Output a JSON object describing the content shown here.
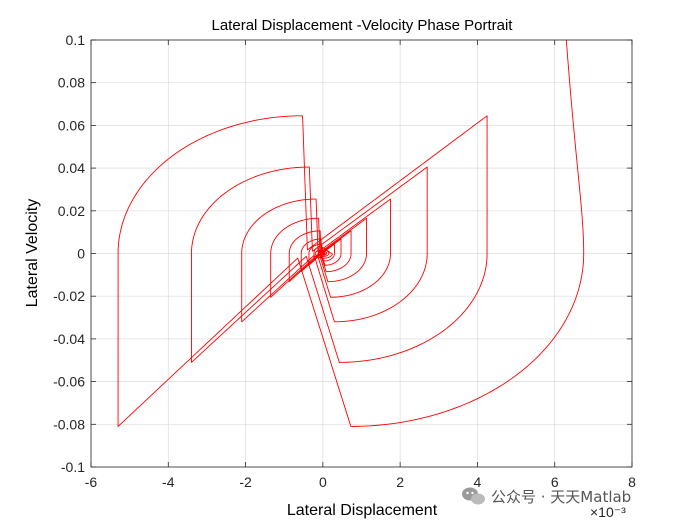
{
  "chart_data": {
    "type": "line",
    "title": "Lateral Displacement -Velocity Phase Portrait",
    "xlabel": "Lateral Displacement",
    "ylabel": "Lateral Velocity",
    "x_scale_label": "×10⁻³",
    "x_scale_factor": 0.001,
    "xlim": [
      -0.006,
      0.008
    ],
    "ylim": [
      -0.1,
      0.1
    ],
    "x_ticks": [
      -0.006,
      -0.004,
      -0.002,
      0,
      0.002,
      0.004,
      0.006,
      0.008
    ],
    "x_tick_labels": [
      "-6",
      "-4",
      "-2",
      "0",
      "2",
      "4",
      "6",
      "8"
    ],
    "y_ticks": [
      -0.1,
      -0.08,
      -0.06,
      -0.04,
      -0.02,
      0,
      0.02,
      0.04,
      0.06,
      0.08,
      0.1
    ],
    "y_tick_labels": [
      "-0.1",
      "-0.08",
      "-0.06",
      "-0.04",
      "-0.02",
      "0",
      "0.02",
      "0.04",
      "0.06",
      "0.08",
      "0.1"
    ],
    "grid": true,
    "line_color": "#ff0000",
    "series": [
      {
        "initial_condition": {
          "x": 0.0063,
          "y": 0.1
        },
        "right_turns_x": [
          0.00675,
          0.00425,
          0.0027,
          0.00175,
          0.00113,
          0.00073,
          0.00047,
          0.0003
        ],
        "left_turns_x": [
          -0.0053,
          -0.0034,
          -0.0021,
          -0.00135,
          -0.00087,
          -0.00056,
          -0.00036,
          -0.00023
        ],
        "bottom_turns_y": [
          -0.081,
          -0.051,
          -0.032,
          -0.0205,
          -0.0132,
          -0.0085,
          -0.0055,
          -0.0035
        ],
        "top_turns_y": [
          0.0645,
          0.0405,
          0.0255,
          0.0165,
          0.0106,
          0.0068,
          0.0044,
          0.0028
        ],
        "convergence_point": {
          "x": 0,
          "y": 0
        }
      }
    ]
  },
  "watermark": {
    "icon": "wechat-icon",
    "text": "公众号 · 天天Matlab"
  }
}
